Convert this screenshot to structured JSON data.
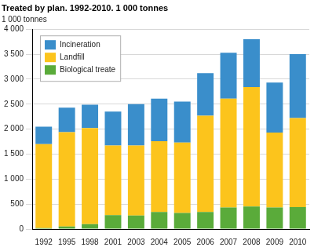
{
  "chart_data": {
    "type": "bar",
    "stacked": true,
    "title": "Treated by plan. 1992-2010. 1 000 tonnes",
    "y_label": "1 000 tonnes",
    "categories": [
      "1992",
      "1995",
      "1998",
      "2001",
      "2003",
      "2004",
      "2005",
      "2006",
      "2007",
      "2008",
      "2009",
      "2010"
    ],
    "series": [
      {
        "name": "Incineration",
        "color": "#3a8ecb",
        "values": [
          350,
          490,
          470,
          680,
          830,
          850,
          820,
          850,
          920,
          960,
          1000,
          1280
        ]
      },
      {
        "name": "Landfill",
        "color": "#fcc41c",
        "values": [
          1680,
          1890,
          1920,
          1390,
          1400,
          1420,
          1410,
          1930,
          2180,
          2390,
          1500,
          1780
        ]
      },
      {
        "name": "Biological treate",
        "color": "#5aab3a",
        "values": [
          20,
          50,
          100,
          280,
          270,
          340,
          320,
          340,
          430,
          450,
          430,
          440
        ]
      }
    ],
    "ylim": [
      0,
      4000
    ],
    "yticks": [
      0,
      500,
      {
        "value": 1000,
        "label": "1 000"
      },
      {
        "value": 1500,
        "label": "1 500"
      },
      {
        "value": 2000,
        "label": "2 000"
      },
      {
        "value": 2500,
        "label": "2 500"
      },
      {
        "value": 3000,
        "label": "3 000"
      },
      {
        "value": 3500,
        "label": "3 500"
      },
      {
        "value": 4000,
        "label": "4 000"
      }
    ],
    "grid": true,
    "legend": "top-left"
  }
}
